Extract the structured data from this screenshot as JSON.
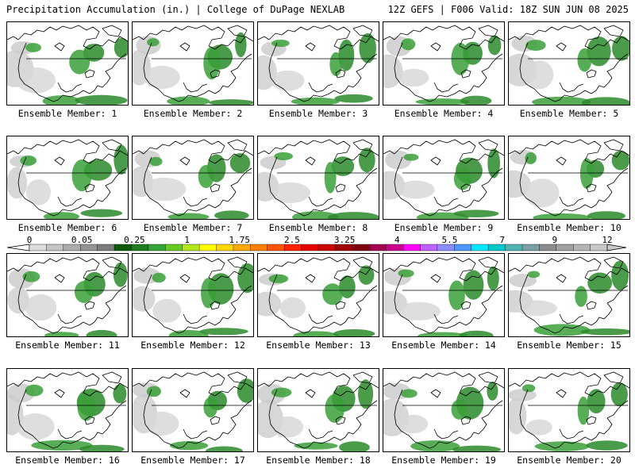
{
  "header": {
    "left": "Precipitation Accumulation (in.) | College of DuPage NEXLAB",
    "right": "12Z GEFS | F006 Valid: 18Z SUN JUN 08 2025"
  },
  "panels": [
    {
      "label": "Ensemble Member: 1"
    },
    {
      "label": "Ensemble Member: 2"
    },
    {
      "label": "Ensemble Member: 3"
    },
    {
      "label": "Ensemble Member: 4"
    },
    {
      "label": "Ensemble Member: 5"
    },
    {
      "label": "Ensemble Member: 6"
    },
    {
      "label": "Ensemble Member: 7"
    },
    {
      "label": "Ensemble Member: 8"
    },
    {
      "label": "Ensemble Member: 9"
    },
    {
      "label": "Ensemble Member: 10"
    },
    {
      "label": "Ensemble Member: 11"
    },
    {
      "label": "Ensemble Member: 12"
    },
    {
      "label": "Ensemble Member: 13"
    },
    {
      "label": "Ensemble Member: 14"
    },
    {
      "label": "Ensemble Member: 15"
    },
    {
      "label": "Ensemble Member: 16"
    },
    {
      "label": "Ensemble Member: 17"
    },
    {
      "label": "Ensemble Member: 18"
    },
    {
      "label": "Ensemble Member: 19"
    },
    {
      "label": "Ensemble Member: 20"
    }
  ],
  "legend": {
    "tick_labels": [
      "0",
      "0.05",
      "0.25",
      "1",
      "1.75",
      "2.5",
      "3.25",
      "4",
      "5.5",
      "7",
      "9",
      "12"
    ],
    "colors": [
      "#dcdcdc",
      "#c4c4c4",
      "#acacac",
      "#949494",
      "#7c7c7c",
      "#0c5a0c",
      "#1e7d1e",
      "#34a534",
      "#66cc22",
      "#b2e61a",
      "#ffff00",
      "#ffd700",
      "#ffaa00",
      "#ff7f00",
      "#ff5500",
      "#ff2000",
      "#e60000",
      "#cc0000",
      "#a00000",
      "#800010",
      "#a00050",
      "#c8008c",
      "#ff00ff",
      "#c060ff",
      "#8c8cff",
      "#5096ff",
      "#00e6ff",
      "#00c8c8",
      "#50b4b4",
      "#78a0a0",
      "#8c8c8c",
      "#a0a0a0",
      "#b4b4b4",
      "#c8c8c8"
    ]
  }
}
